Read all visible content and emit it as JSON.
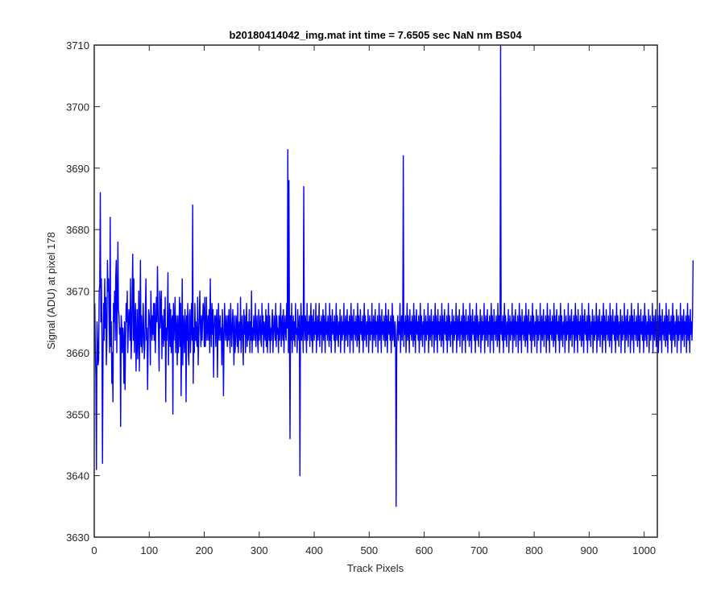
{
  "chart_data": {
    "type": "line",
    "title": "b20180414042_img.mat int time = 7.6505 sec  NaN nm BS04",
    "xlabel": "Track Pixels",
    "ylabel": "Signal (ADU) at pixel 178",
    "xlim": [
      0,
      1024
    ],
    "ylim": [
      3630,
      3710
    ],
    "xticks": [
      0,
      100,
      200,
      300,
      400,
      500,
      600,
      700,
      800,
      900,
      1000
    ],
    "yticks": [
      3630,
      3640,
      3650,
      3660,
      3670,
      3680,
      3690,
      3700,
      3710
    ],
    "grid": false,
    "legend": "none",
    "series": [
      {
        "color": "#0000ff",
        "x_start": 1,
        "x_step": 1,
        "values": [
          3668,
          3660,
          3656,
          3641,
          3665,
          3662,
          3658,
          3659,
          3670,
          3671,
          3686,
          3665,
          3672,
          3662,
          3642,
          3660,
          3668,
          3662,
          3672,
          3664,
          3669,
          3658,
          3662,
          3675,
          3670,
          3672,
          3665,
          3660,
          3682,
          3661,
          3665,
          3655,
          3660,
          3652,
          3668,
          3665,
          3670,
          3662,
          3672,
          3675,
          3660,
          3668,
          3678,
          3667,
          3666,
          3663,
          3664,
          3648,
          3666,
          3664,
          3660,
          3664,
          3662,
          3655,
          3665,
          3654,
          3662,
          3668,
          3665,
          3670,
          3660,
          3664,
          3667,
          3666,
          3662,
          3672,
          3659,
          3662,
          3670,
          3676,
          3662,
          3672,
          3660,
          3665,
          3668,
          3657,
          3662,
          3667,
          3659,
          3663,
          3670,
          3657,
          3664,
          3675,
          3661,
          3666,
          3660,
          3662,
          3668,
          3664,
          3659,
          3661,
          3667,
          3672,
          3662,
          3664,
          3654,
          3661,
          3667,
          3666,
          3664,
          3658,
          3670,
          3665,
          3662,
          3666,
          3663,
          3668,
          3662,
          3668,
          3660,
          3664,
          3669,
          3665,
          3674,
          3667,
          3662,
          3657,
          3670,
          3664,
          3668,
          3670,
          3659,
          3666,
          3664,
          3661,
          3667,
          3662,
          3669,
          3652,
          3664,
          3662,
          3666,
          3673,
          3658,
          3664,
          3668,
          3661,
          3667,
          3660,
          3665,
          3666,
          3650,
          3668,
          3662,
          3665,
          3669,
          3660,
          3666,
          3664,
          3658,
          3666,
          3660,
          3663,
          3669,
          3661,
          3668,
          3653,
          3662,
          3672,
          3658,
          3666,
          3664,
          3660,
          3667,
          3664,
          3652,
          3666,
          3662,
          3668,
          3660,
          3658,
          3666,
          3667,
          3660,
          3664,
          3668,
          3662,
          3684,
          3655,
          3664,
          3660,
          3668,
          3662,
          3665,
          3662,
          3661,
          3669,
          3658,
          3662,
          3666,
          3670,
          3664,
          3661,
          3666,
          3662,
          3665,
          3668,
          3667,
          3661,
          3669,
          3661,
          3664,
          3669,
          3662,
          3664,
          3666,
          3662,
          3667,
          3660,
          3672,
          3664,
          3661,
          3668,
          3663,
          3667,
          3656,
          3664,
          3666,
          3666,
          3661,
          3665,
          3667,
          3656,
          3664,
          3668,
          3662,
          3664,
          3666,
          3662,
          3664,
          3658,
          3667,
          3664,
          3653,
          3662,
          3668,
          3664,
          3662,
          3666,
          3664,
          3661,
          3666,
          3662,
          3667,
          3664,
          3660,
          3668,
          3665,
          3661,
          3664,
          3667,
          3663,
          3658,
          3666,
          3660,
          3662,
          3666,
          3664,
          3661,
          3668,
          3660,
          3664,
          3665,
          3662,
          3669,
          3660,
          3664,
          3666,
          3662,
          3658,
          3667,
          3663,
          3666,
          3660,
          3664,
          3668,
          3661,
          3665,
          3662,
          3664,
          3667,
          3660,
          3665,
          3662,
          3670,
          3660,
          3664,
          3662,
          3666,
          3664,
          3662,
          3668,
          3661,
          3664,
          3666,
          3662,
          3660,
          3667,
          3662,
          3664,
          3666,
          3662,
          3661,
          3668,
          3663,
          3666,
          3660,
          3665,
          3664,
          3662,
          3667,
          3661,
          3666,
          3660,
          3664,
          3668,
          3662,
          3666,
          3660,
          3664,
          3662,
          3665,
          3667,
          3660,
          3663,
          3666,
          3664,
          3662,
          3668,
          3661,
          3666,
          3663,
          3664,
          3660,
          3666,
          3662,
          3665,
          3668,
          3661,
          3664,
          3666,
          3662,
          3667,
          3660,
          3664,
          3666,
          3663,
          3662,
          3668,
          3664,
          3693,
          3660,
          3688,
          3664,
          3646,
          3666,
          3662,
          3668,
          3660,
          3664,
          3666,
          3662,
          3665,
          3661,
          3668,
          3663,
          3664,
          3660,
          3667,
          3664,
          3662,
          3666,
          3640,
          3664,
          3668,
          3662,
          3666,
          3664,
          3660,
          3687,
          3664,
          3662,
          3666,
          3664,
          3660,
          3668,
          3662,
          3665,
          3663,
          3666,
          3661,
          3664,
          3668,
          3662,
          3666,
          3660,
          3664,
          3667,
          3662,
          3665,
          3663,
          3668,
          3660,
          3664,
          3666,
          3662,
          3664,
          3668,
          3661,
          3665,
          3663,
          3666,
          3660,
          3664,
          3667,
          3662,
          3666,
          3664,
          3660,
          3668,
          3663,
          3665,
          3662,
          3666,
          3664,
          3661,
          3668,
          3662,
          3666,
          3660,
          3664,
          3667,
          3663,
          3665,
          3662,
          3666,
          3660,
          3664,
          3668,
          3662,
          3666,
          3664,
          3661,
          3665,
          3663,
          3667,
          3660,
          3664,
          3666,
          3662,
          3665,
          3663,
          3668,
          3660,
          3664,
          3666,
          3662,
          3664,
          3667,
          3661,
          3665,
          3663,
          3666,
          3660,
          3664,
          3668,
          3662,
          3666,
          3664,
          3660,
          3667,
          3663,
          3665,
          3662,
          3666,
          3664,
          3661,
          3668,
          3662,
          3666,
          3660,
          3664,
          3667,
          3663,
          3665,
          3662,
          3666,
          3660,
          3664,
          3668,
          3662,
          3666,
          3664,
          3661,
          3665,
          3663,
          3667,
          3660,
          3664,
          3666,
          3662,
          3665,
          3663,
          3668,
          3660,
          3664,
          3666,
          3662,
          3664,
          3667,
          3661,
          3665,
          3663,
          3666,
          3660,
          3664,
          3668,
          3662,
          3666,
          3664,
          3660,
          3667,
          3663,
          3665,
          3662,
          3666,
          3664,
          3661,
          3668,
          3662,
          3666,
          3660,
          3664,
          3667,
          3663,
          3665,
          3662,
          3666,
          3660,
          3664,
          3668,
          3662,
          3666,
          3664,
          3661,
          3665,
          3663,
          3635,
          3660,
          3664,
          3666,
          3662,
          3665,
          3663,
          3668,
          3660,
          3664,
          3666,
          3662,
          3664,
          3692,
          3661,
          3665,
          3663,
          3666,
          3660,
          3664,
          3668,
          3662,
          3666,
          3664,
          3660,
          3667,
          3663,
          3665,
          3662,
          3666,
          3664,
          3661,
          3668,
          3662,
          3666,
          3660,
          3664,
          3667,
          3663,
          3665,
          3662,
          3666,
          3660,
          3664,
          3668,
          3662,
          3666,
          3664,
          3661,
          3665,
          3663,
          3667,
          3660,
          3664,
          3666,
          3662,
          3665,
          3663,
          3668,
          3660,
          3664,
          3666,
          3662,
          3664,
          3667,
          3661,
          3665,
          3663,
          3666,
          3660,
          3664,
          3668,
          3662,
          3666,
          3664,
          3660,
          3667,
          3663,
          3665,
          3662,
          3666,
          3664,
          3661,
          3668,
          3662,
          3666,
          3660,
          3664,
          3667,
          3663,
          3665,
          3662,
          3666,
          3660,
          3664,
          3668,
          3662,
          3666,
          3664,
          3661,
          3665,
          3663,
          3667,
          3660,
          3664,
          3666,
          3662,
          3665,
          3663,
          3668,
          3660,
          3664,
          3666,
          3662,
          3664,
          3667,
          3661,
          3665,
          3663,
          3666,
          3660,
          3664,
          3668,
          3662,
          3666,
          3664,
          3660,
          3667,
          3663,
          3665,
          3662,
          3666,
          3664,
          3661,
          3668,
          3662,
          3666,
          3660,
          3664,
          3667,
          3663,
          3665,
          3662,
          3666,
          3660,
          3664,
          3668,
          3662,
          3666,
          3664,
          3661,
          3665,
          3663,
          3667,
          3660,
          3664,
          3666,
          3662,
          3665,
          3663,
          3668,
          3660,
          3664,
          3666,
          3662,
          3664,
          3667,
          3661,
          3665,
          3663,
          3666,
          3660,
          3664,
          3668,
          3662,
          3666,
          3664,
          3660,
          3667,
          3663,
          3665,
          3662,
          3666,
          3664,
          3661,
          3668,
          3662,
          3666,
          3660,
          3664,
          3710,
          3663,
          3665,
          3662,
          3666,
          3660,
          3664,
          3668,
          3662,
          3666,
          3664,
          3661,
          3665,
          3663,
          3667,
          3660,
          3664,
          3666,
          3662,
          3665,
          3663,
          3668,
          3660,
          3664,
          3666,
          3662,
          3664,
          3667,
          3661,
          3665,
          3663,
          3666,
          3660,
          3664,
          3668,
          3662,
          3666,
          3664,
          3660,
          3667,
          3663,
          3665,
          3662,
          3666,
          3664,
          3661,
          3668,
          3662,
          3666,
          3660,
          3664,
          3667,
          3663,
          3665,
          3662,
          3666,
          3660,
          3664,
          3668,
          3662,
          3666,
          3664,
          3661,
          3665,
          3663,
          3667,
          3660,
          3664,
          3666,
          3662,
          3665,
          3663,
          3668,
          3660,
          3664,
          3666,
          3662,
          3664,
          3667,
          3661,
          3665,
          3663,
          3666,
          3660,
          3664,
          3668,
          3662,
          3666,
          3664,
          3660,
          3667,
          3663,
          3665,
          3662,
          3666,
          3664,
          3661,
          3668,
          3662,
          3666,
          3660,
          3664,
          3667,
          3663,
          3665,
          3662,
          3666,
          3660,
          3664,
          3668,
          3662,
          3666,
          3664,
          3661,
          3665,
          3663,
          3667,
          3660,
          3664,
          3666,
          3662,
          3665,
          3663,
          3668,
          3660,
          3664,
          3666,
          3662,
          3664,
          3667,
          3661,
          3665,
          3663,
          3666,
          3660,
          3664,
          3668,
          3662,
          3666,
          3664,
          3660,
          3667,
          3663,
          3665,
          3662,
          3666,
          3664,
          3661,
          3668,
          3662,
          3666,
          3660,
          3664,
          3667,
          3663,
          3665,
          3662,
          3666,
          3660,
          3664,
          3668,
          3662,
          3666,
          3664,
          3661,
          3665,
          3663,
          3667,
          3660,
          3664,
          3666,
          3662,
          3665,
          3663,
          3668,
          3660,
          3664,
          3666,
          3662,
          3664,
          3667,
          3661,
          3665,
          3663,
          3666,
          3660,
          3664,
          3668,
          3662,
          3666,
          3664,
          3660,
          3667,
          3663,
          3665,
          3662,
          3666,
          3664,
          3661,
          3668,
          3662,
          3666,
          3660,
          3664,
          3667,
          3663,
          3665,
          3662,
          3666,
          3660,
          3664,
          3668,
          3662,
          3666,
          3664,
          3661,
          3665,
          3663,
          3667,
          3660,
          3664,
          3666,
          3662,
          3665,
          3663,
          3668,
          3660,
          3664,
          3666,
          3662,
          3664,
          3667,
          3661,
          3665,
          3663,
          3666,
          3660,
          3664,
          3668,
          3662,
          3666,
          3664,
          3660,
          3667,
          3663,
          3665,
          3662,
          3666,
          3664,
          3661,
          3668,
          3662,
          3666,
          3660,
          3664,
          3667,
          3663,
          3665,
          3662,
          3666,
          3660,
          3664,
          3668,
          3662,
          3666,
          3664,
          3661,
          3665,
          3663,
          3667,
          3660,
          3664,
          3666,
          3662,
          3665,
          3663,
          3668,
          3660,
          3664,
          3666,
          3662,
          3664,
          3667,
          3661,
          3665,
          3663,
          3666,
          3660,
          3664,
          3668,
          3662,
          3666,
          3664,
          3660,
          3667,
          3663,
          3665,
          3662,
          3666,
          3664,
          3661,
          3668,
          3662,
          3666,
          3660,
          3664,
          3667,
          3663,
          3665,
          3662,
          3666,
          3660,
          3664,
          3668,
          3662,
          3666,
          3664,
          3661,
          3665,
          3663,
          3667,
          3660,
          3664,
          3666,
          3662,
          3665,
          3663,
          3668,
          3660,
          3664,
          3666,
          3662,
          3664,
          3667,
          3661,
          3665,
          3663,
          3666,
          3660,
          3664,
          3668,
          3662,
          3666,
          3664,
          3660,
          3667,
          3663,
          3665,
          3662,
          3666,
          3675
        ]
      }
    ]
  }
}
